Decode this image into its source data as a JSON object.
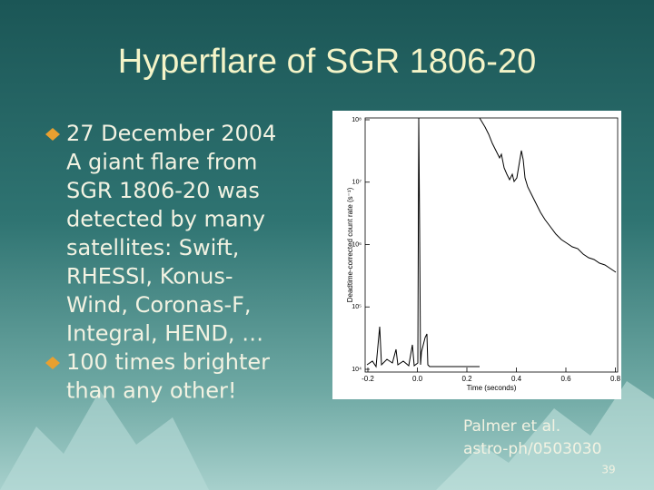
{
  "title": "Hyperflare of SGR 1806-20",
  "bullets": [
    {
      "lines": [
        "27 December 2004",
        "A giant flare from",
        "SGR 1806-20 was",
        "detected by many",
        "satellites: Swift,",
        "RHESSI, Konus-",
        "Wind, Coronas-F,",
        "Integral, HEND, …"
      ]
    },
    {
      "lines": [
        "100 times brighter",
        "than any other!"
      ]
    }
  ],
  "figure": {
    "y_label": "Deadtime-corrected count rate (s⁻¹)",
    "x_label": "Time (seconds)",
    "y_ticks": [
      "10⁸",
      "10⁷",
      "10⁶",
      "10⁵",
      "10⁴"
    ],
    "x_ticks": [
      "-0.2",
      "0.0",
      "0.2",
      "0.4",
      "0.6",
      "0.8"
    ]
  },
  "caption": [
    "Palmer et al.",
    "astro-ph/0503030"
  ],
  "page_number": "39"
}
